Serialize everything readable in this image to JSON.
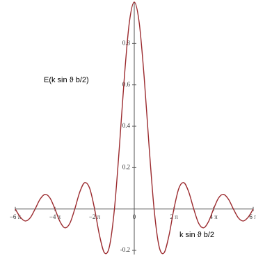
{
  "chart_data": {
    "type": "line",
    "xlabel": "k sin ϑ b/2",
    "ylabel": "E(k sin ϑ b/2)",
    "x": [
      -18.85,
      -18.064,
      -17.279,
      -16.493,
      -15.708,
      -14.923,
      -14.137,
      -13.352,
      -12.566,
      -11.781,
      -10.996,
      -10.21,
      -9.425,
      -8.639,
      -7.854,
      -7.069,
      -6.283,
      -5.498,
      -4.712,
      -3.927,
      -3.142,
      -2.356,
      -1.571,
      -0.785,
      0,
      0.785,
      1.571,
      2.356,
      3.142,
      3.927,
      4.712,
      5.498,
      6.283,
      7.069,
      7.854,
      8.639,
      9.425,
      10.21,
      10.996,
      11.781,
      12.566,
      13.352,
      14.137,
      14.923,
      15.708,
      16.493,
      17.279,
      18.064,
      18.85
    ],
    "series": [
      {
        "color": "#9b2a2e",
        "values": [
          0,
          -0.0391,
          -0.0579,
          -0.0429,
          0,
          0.0474,
          0.0707,
          0.053,
          0,
          -0.06,
          -0.0909,
          -0.0693,
          0,
          0.0818,
          0.1273,
          0.1,
          0,
          -0.1286,
          -0.2122,
          -0.1801,
          0,
          0.3001,
          0.6366,
          0.9003,
          1,
          0.9003,
          0.6366,
          0.3001,
          0,
          -0.1801,
          -0.2122,
          -0.1286,
          0,
          0.1,
          0.1273,
          0.0818,
          0,
          -0.0693,
          -0.0909,
          -0.06,
          0,
          0.053,
          0.0707,
          0.0474,
          0,
          -0.0429,
          -0.0579,
          -0.0391,
          0
        ]
      }
    ],
    "xlim": [
      -18.85,
      18.85
    ],
    "ylim": [
      -0.22,
      1.0
    ],
    "xticks": [
      {
        "value": -18.85,
        "label": "−6 π"
      },
      {
        "value": -12.566,
        "label": "−4 π"
      },
      {
        "value": -6.283,
        "label": "−2 π"
      },
      0,
      {
        "value": 6.283,
        "label": "2 π"
      },
      {
        "value": 12.566,
        "label": "4 π"
      },
      {
        "value": 18.85,
        "label": "6 π"
      }
    ],
    "yticks": [
      -0.2,
      0.2,
      0.4,
      0.6,
      0.8
    ]
  }
}
